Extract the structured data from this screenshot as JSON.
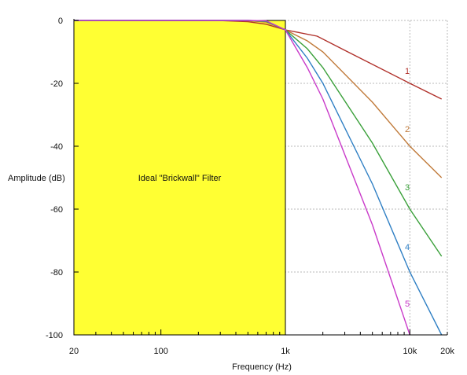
{
  "chart_data": {
    "type": "line",
    "title": "",
    "xlabel": "Frequency (Hz)",
    "ylabel": "Amplitude (dB)",
    "x_scale": "log",
    "xlim": [
      20,
      20000
    ],
    "ylim": [
      -100,
      0
    ],
    "x_ticks": [
      {
        "value": 20,
        "label": "20"
      },
      {
        "value": 100,
        "label": "100"
      },
      {
        "value": 1000,
        "label": "1k"
      },
      {
        "value": 10000,
        "label": "10k"
      },
      {
        "value": 20000,
        "label": "20k"
      }
    ],
    "y_ticks": [
      {
        "value": 0,
        "label": "0"
      },
      {
        "value": -20,
        "label": "-20"
      },
      {
        "value": -40,
        "label": "-40"
      },
      {
        "value": -60,
        "label": "-60"
      },
      {
        "value": -80,
        "label": "-80"
      },
      {
        "value": -100,
        "label": "-100"
      }
    ],
    "grid": true,
    "brickwall": {
      "label": "Ideal \"Brickwall\" Filter",
      "x_range": [
        20,
        1000
      ],
      "y_range": [
        -100,
        0
      ],
      "color": "#ffff33"
    },
    "series": [
      {
        "label": "1",
        "color": "#b0302a",
        "label_point": [
          9000,
          -17
        ],
        "points": [
          [
            20,
            0
          ],
          [
            300,
            -0.05
          ],
          [
            500,
            -0.4
          ],
          [
            700,
            -1.2
          ],
          [
            1000,
            -3
          ],
          [
            1800,
            -5
          ],
          [
            3000,
            -9.5
          ],
          [
            10000,
            -20
          ],
          [
            18000,
            -25
          ]
        ]
      },
      {
        "label": "2",
        "color": "#c07a3a",
        "label_point": [
          9000,
          -35.5
        ],
        "points": [
          [
            20,
            0
          ],
          [
            300,
            0
          ],
          [
            500,
            -0.1
          ],
          [
            700,
            -0.5
          ],
          [
            1000,
            -3
          ],
          [
            1500,
            -6.5
          ],
          [
            2000,
            -10
          ],
          [
            5000,
            -26
          ],
          [
            10000,
            -40
          ],
          [
            18000,
            -50
          ]
        ]
      },
      {
        "label": "3",
        "color": "#3aa03a",
        "label_point": [
          9000,
          -54
        ],
        "points": [
          [
            20,
            0
          ],
          [
            500,
            0
          ],
          [
            700,
            -0.3
          ],
          [
            1000,
            -3
          ],
          [
            1500,
            -9
          ],
          [
            2000,
            -15
          ],
          [
            5000,
            -39
          ],
          [
            10000,
            -60
          ],
          [
            18000,
            -75
          ]
        ]
      },
      {
        "label": "4",
        "color": "#2f7fc4",
        "label_point": [
          9000,
          -73
        ],
        "points": [
          [
            20,
            0
          ],
          [
            500,
            0
          ],
          [
            700,
            -0.2
          ],
          [
            1000,
            -3
          ],
          [
            1500,
            -12
          ],
          [
            2000,
            -20
          ],
          [
            5000,
            -52
          ],
          [
            10000,
            -80
          ],
          [
            18000,
            -100
          ]
        ]
      },
      {
        "label": "5",
        "color": "#c93ac9",
        "label_point": [
          9000,
          -91
        ],
        "points": [
          [
            20,
            0
          ],
          [
            500,
            0
          ],
          [
            700,
            -0.1
          ],
          [
            1000,
            -3
          ],
          [
            1500,
            -15
          ],
          [
            2000,
            -25
          ],
          [
            5000,
            -65
          ],
          [
            10000,
            -100
          ]
        ]
      }
    ]
  }
}
